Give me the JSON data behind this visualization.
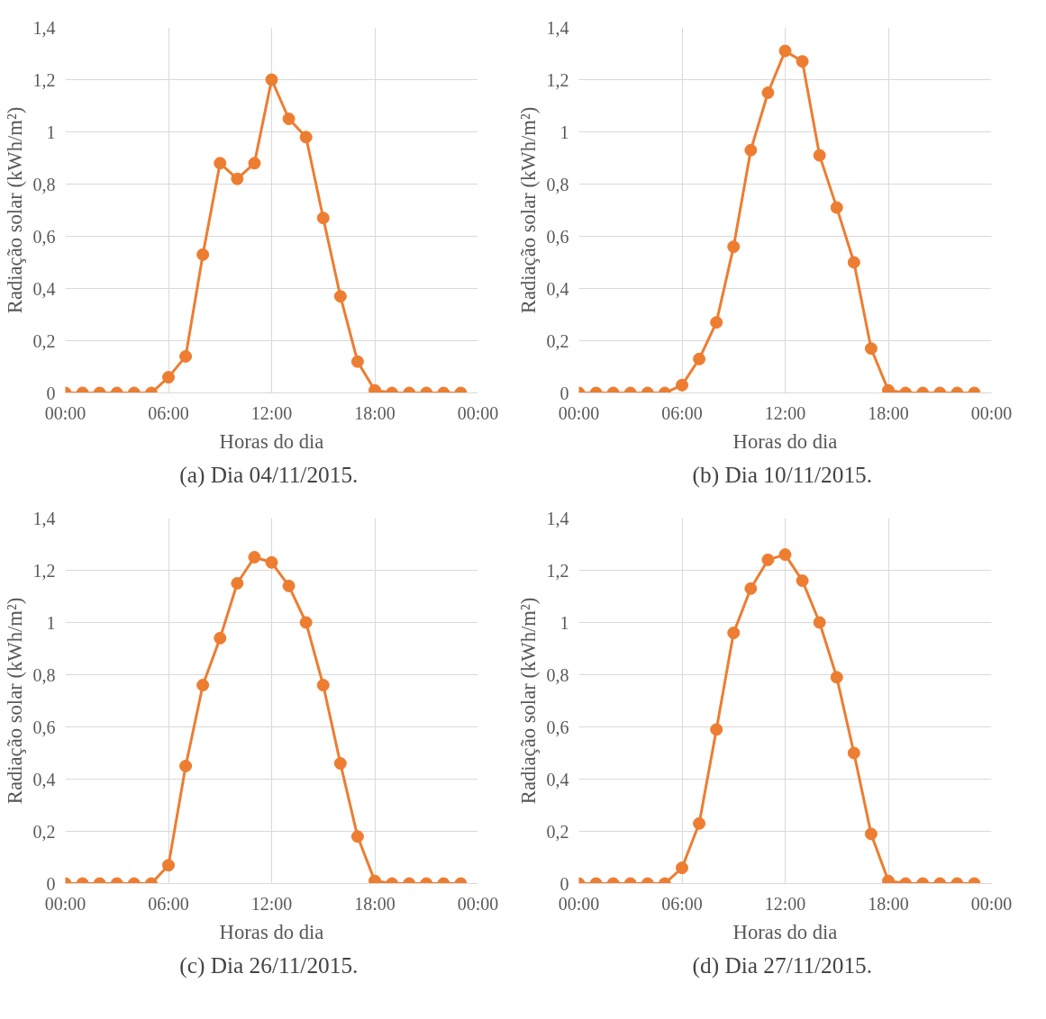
{
  "chart_data": [
    {
      "type": "line",
      "title": "(a)  Dia 04/11/2015.",
      "xlabel": "Horas do dia",
      "ylabel": "Radiação solar (kWh/m²)",
      "x": [
        0,
        1,
        2,
        3,
        4,
        5,
        6,
        7,
        8,
        9,
        10,
        11,
        12,
        13,
        14,
        15,
        16,
        17,
        18,
        19,
        20,
        21,
        22,
        23
      ],
      "series": [
        {
          "color": "#ed7d31",
          "values": [
            0,
            0,
            0,
            0,
            0,
            0,
            0.06,
            0.14,
            0.53,
            0.88,
            0.82,
            0.88,
            1.2,
            1.05,
            0.98,
            0.67,
            0.37,
            0.12,
            0.01,
            0,
            0,
            0,
            0,
            0
          ]
        }
      ],
      "xlim": [
        0,
        24
      ],
      "xticks": [
        {
          "value": 0,
          "label": "00:00"
        },
        {
          "value": 6,
          "label": "06:00"
        },
        {
          "value": 12,
          "label": "12:00"
        },
        {
          "value": 18,
          "label": "18:00"
        },
        {
          "value": 24,
          "label": "00:00"
        }
      ],
      "ylim": [
        0,
        1.4
      ],
      "yticks": [
        {
          "value": 0,
          "label": "0"
        },
        {
          "value": 0.2,
          "label": "0,2"
        },
        {
          "value": 0.4,
          "label": "0,4"
        },
        {
          "value": 0.6,
          "label": "0,6"
        },
        {
          "value": 0.8,
          "label": "0,8"
        },
        {
          "value": 1,
          "label": "1"
        },
        {
          "value": 1.2,
          "label": "1,2"
        },
        {
          "value": 1.4,
          "label": "1,4"
        }
      ],
      "grid": true,
      "marker": "circle",
      "line_style": "solid"
    },
    {
      "type": "line",
      "title": "(b)  Dia 10/11/2015.",
      "xlabel": "Horas do dia",
      "ylabel": "Radiação solar (kWh/m²)",
      "x": [
        0,
        1,
        2,
        3,
        4,
        5,
        6,
        7,
        8,
        9,
        10,
        11,
        12,
        13,
        14,
        15,
        16,
        17,
        18,
        19,
        20,
        21,
        22,
        23
      ],
      "series": [
        {
          "color": "#ed7d31",
          "values": [
            0,
            0,
            0,
            0,
            0,
            0,
            0.03,
            0.13,
            0.27,
            0.56,
            0.93,
            1.15,
            1.31,
            1.27,
            0.91,
            0.71,
            0.5,
            0.17,
            0.01,
            0,
            0,
            0,
            0,
            0
          ]
        }
      ],
      "xlim": [
        0,
        24
      ],
      "xticks": [
        {
          "value": 0,
          "label": "00:00"
        },
        {
          "value": 6,
          "label": "06:00"
        },
        {
          "value": 12,
          "label": "12:00"
        },
        {
          "value": 18,
          "label": "18:00"
        },
        {
          "value": 24,
          "label": "00:00"
        }
      ],
      "ylim": [
        0,
        1.4
      ],
      "yticks": [
        {
          "value": 0,
          "label": "0"
        },
        {
          "value": 0.2,
          "label": "0,2"
        },
        {
          "value": 0.4,
          "label": "0,4"
        },
        {
          "value": 0.6,
          "label": "0,6"
        },
        {
          "value": 0.8,
          "label": "0,8"
        },
        {
          "value": 1,
          "label": "1"
        },
        {
          "value": 1.2,
          "label": "1,2"
        },
        {
          "value": 1.4,
          "label": "1,4"
        }
      ],
      "grid": true,
      "marker": "circle",
      "line_style": "solid"
    },
    {
      "type": "line",
      "title": "(c)  Dia 26/11/2015.",
      "xlabel": "Horas do dia",
      "ylabel": "Radiação solar (kWh/m²)",
      "x": [
        0,
        1,
        2,
        3,
        4,
        5,
        6,
        7,
        8,
        9,
        10,
        11,
        12,
        13,
        14,
        15,
        16,
        17,
        18,
        19,
        20,
        21,
        22,
        23
      ],
      "series": [
        {
          "color": "#ed7d31",
          "values": [
            0,
            0,
            0,
            0,
            0,
            0,
            0.07,
            0.45,
            0.76,
            0.94,
            1.15,
            1.25,
            1.23,
            1.14,
            1.0,
            0.76,
            0.46,
            0.18,
            0.01,
            0,
            0,
            0,
            0,
            0
          ]
        }
      ],
      "xlim": [
        0,
        24
      ],
      "xticks": [
        {
          "value": 0,
          "label": "00:00"
        },
        {
          "value": 6,
          "label": "06:00"
        },
        {
          "value": 12,
          "label": "12:00"
        },
        {
          "value": 18,
          "label": "18:00"
        },
        {
          "value": 24,
          "label": "00:00"
        }
      ],
      "ylim": [
        0,
        1.4
      ],
      "yticks": [
        {
          "value": 0,
          "label": "0"
        },
        {
          "value": 0.2,
          "label": "0,2"
        },
        {
          "value": 0.4,
          "label": "0,4"
        },
        {
          "value": 0.6,
          "label": "0,6"
        },
        {
          "value": 0.8,
          "label": "0,8"
        },
        {
          "value": 1,
          "label": "1"
        },
        {
          "value": 1.2,
          "label": "1,2"
        },
        {
          "value": 1.4,
          "label": "1,4"
        }
      ],
      "grid": true,
      "marker": "circle",
      "line_style": "solid"
    },
    {
      "type": "line",
      "title": "(d)  Dia 27/11/2015.",
      "xlabel": "Horas do dia",
      "ylabel": "Radiação solar (kWh/m²)",
      "x": [
        0,
        1,
        2,
        3,
        4,
        5,
        6,
        7,
        8,
        9,
        10,
        11,
        12,
        13,
        14,
        15,
        16,
        17,
        18,
        19,
        20,
        21,
        22,
        23
      ],
      "series": [
        {
          "color": "#ed7d31",
          "values": [
            0,
            0,
            0,
            0,
            0,
            0,
            0.06,
            0.23,
            0.59,
            0.96,
            1.13,
            1.24,
            1.26,
            1.16,
            1.0,
            0.79,
            0.5,
            0.19,
            0.01,
            0,
            0,
            0,
            0,
            0
          ]
        }
      ],
      "xlim": [
        0,
        24
      ],
      "xticks": [
        {
          "value": 0,
          "label": "00:00"
        },
        {
          "value": 6,
          "label": "06:00"
        },
        {
          "value": 12,
          "label": "12:00"
        },
        {
          "value": 18,
          "label": "18:00"
        },
        {
          "value": 24,
          "label": "00:00"
        }
      ],
      "ylim": [
        0,
        1.4
      ],
      "yticks": [
        {
          "value": 0,
          "label": "0"
        },
        {
          "value": 0.2,
          "label": "0,2"
        },
        {
          "value": 0.4,
          "label": "0,4"
        },
        {
          "value": 0.6,
          "label": "0,6"
        },
        {
          "value": 0.8,
          "label": "0,8"
        },
        {
          "value": 1,
          "label": "1"
        },
        {
          "value": 1.2,
          "label": "1,2"
        },
        {
          "value": 1.4,
          "label": "1,4"
        }
      ],
      "grid": true,
      "marker": "circle",
      "line_style": "solid"
    }
  ]
}
